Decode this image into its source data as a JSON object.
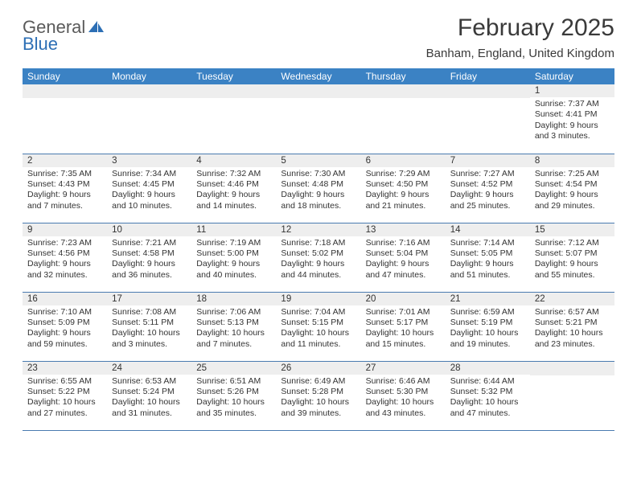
{
  "brand": {
    "word1": "General",
    "word2": "Blue",
    "color1": "#5a5a5a",
    "color2": "#2d6fb5"
  },
  "title": "February 2025",
  "location": "Banham, England, United Kingdom",
  "header_bg": "#3b82c4",
  "header_fg": "#ffffff",
  "divider_color": "#4a7bb0",
  "daynum_bg": "#eeeeee",
  "days": [
    "Sunday",
    "Monday",
    "Tuesday",
    "Wednesday",
    "Thursday",
    "Friday",
    "Saturday"
  ],
  "weeks": [
    [
      null,
      null,
      null,
      null,
      null,
      null,
      {
        "n": "1",
        "sr": "Sunrise: 7:37 AM",
        "ss": "Sunset: 4:41 PM",
        "dl": "Daylight: 9 hours and 3 minutes."
      }
    ],
    [
      {
        "n": "2",
        "sr": "Sunrise: 7:35 AM",
        "ss": "Sunset: 4:43 PM",
        "dl": "Daylight: 9 hours and 7 minutes."
      },
      {
        "n": "3",
        "sr": "Sunrise: 7:34 AM",
        "ss": "Sunset: 4:45 PM",
        "dl": "Daylight: 9 hours and 10 minutes."
      },
      {
        "n": "4",
        "sr": "Sunrise: 7:32 AM",
        "ss": "Sunset: 4:46 PM",
        "dl": "Daylight: 9 hours and 14 minutes."
      },
      {
        "n": "5",
        "sr": "Sunrise: 7:30 AM",
        "ss": "Sunset: 4:48 PM",
        "dl": "Daylight: 9 hours and 18 minutes."
      },
      {
        "n": "6",
        "sr": "Sunrise: 7:29 AM",
        "ss": "Sunset: 4:50 PM",
        "dl": "Daylight: 9 hours and 21 minutes."
      },
      {
        "n": "7",
        "sr": "Sunrise: 7:27 AM",
        "ss": "Sunset: 4:52 PM",
        "dl": "Daylight: 9 hours and 25 minutes."
      },
      {
        "n": "8",
        "sr": "Sunrise: 7:25 AM",
        "ss": "Sunset: 4:54 PM",
        "dl": "Daylight: 9 hours and 29 minutes."
      }
    ],
    [
      {
        "n": "9",
        "sr": "Sunrise: 7:23 AM",
        "ss": "Sunset: 4:56 PM",
        "dl": "Daylight: 9 hours and 32 minutes."
      },
      {
        "n": "10",
        "sr": "Sunrise: 7:21 AM",
        "ss": "Sunset: 4:58 PM",
        "dl": "Daylight: 9 hours and 36 minutes."
      },
      {
        "n": "11",
        "sr": "Sunrise: 7:19 AM",
        "ss": "Sunset: 5:00 PM",
        "dl": "Daylight: 9 hours and 40 minutes."
      },
      {
        "n": "12",
        "sr": "Sunrise: 7:18 AM",
        "ss": "Sunset: 5:02 PM",
        "dl": "Daylight: 9 hours and 44 minutes."
      },
      {
        "n": "13",
        "sr": "Sunrise: 7:16 AM",
        "ss": "Sunset: 5:04 PM",
        "dl": "Daylight: 9 hours and 47 minutes."
      },
      {
        "n": "14",
        "sr": "Sunrise: 7:14 AM",
        "ss": "Sunset: 5:05 PM",
        "dl": "Daylight: 9 hours and 51 minutes."
      },
      {
        "n": "15",
        "sr": "Sunrise: 7:12 AM",
        "ss": "Sunset: 5:07 PM",
        "dl": "Daylight: 9 hours and 55 minutes."
      }
    ],
    [
      {
        "n": "16",
        "sr": "Sunrise: 7:10 AM",
        "ss": "Sunset: 5:09 PM",
        "dl": "Daylight: 9 hours and 59 minutes."
      },
      {
        "n": "17",
        "sr": "Sunrise: 7:08 AM",
        "ss": "Sunset: 5:11 PM",
        "dl": "Daylight: 10 hours and 3 minutes."
      },
      {
        "n": "18",
        "sr": "Sunrise: 7:06 AM",
        "ss": "Sunset: 5:13 PM",
        "dl": "Daylight: 10 hours and 7 minutes."
      },
      {
        "n": "19",
        "sr": "Sunrise: 7:04 AM",
        "ss": "Sunset: 5:15 PM",
        "dl": "Daylight: 10 hours and 11 minutes."
      },
      {
        "n": "20",
        "sr": "Sunrise: 7:01 AM",
        "ss": "Sunset: 5:17 PM",
        "dl": "Daylight: 10 hours and 15 minutes."
      },
      {
        "n": "21",
        "sr": "Sunrise: 6:59 AM",
        "ss": "Sunset: 5:19 PM",
        "dl": "Daylight: 10 hours and 19 minutes."
      },
      {
        "n": "22",
        "sr": "Sunrise: 6:57 AM",
        "ss": "Sunset: 5:21 PM",
        "dl": "Daylight: 10 hours and 23 minutes."
      }
    ],
    [
      {
        "n": "23",
        "sr": "Sunrise: 6:55 AM",
        "ss": "Sunset: 5:22 PM",
        "dl": "Daylight: 10 hours and 27 minutes."
      },
      {
        "n": "24",
        "sr": "Sunrise: 6:53 AM",
        "ss": "Sunset: 5:24 PM",
        "dl": "Daylight: 10 hours and 31 minutes."
      },
      {
        "n": "25",
        "sr": "Sunrise: 6:51 AM",
        "ss": "Sunset: 5:26 PM",
        "dl": "Daylight: 10 hours and 35 minutes."
      },
      {
        "n": "26",
        "sr": "Sunrise: 6:49 AM",
        "ss": "Sunset: 5:28 PM",
        "dl": "Daylight: 10 hours and 39 minutes."
      },
      {
        "n": "27",
        "sr": "Sunrise: 6:46 AM",
        "ss": "Sunset: 5:30 PM",
        "dl": "Daylight: 10 hours and 43 minutes."
      },
      {
        "n": "28",
        "sr": "Sunrise: 6:44 AM",
        "ss": "Sunset: 5:32 PM",
        "dl": "Daylight: 10 hours and 47 minutes."
      },
      null
    ]
  ]
}
